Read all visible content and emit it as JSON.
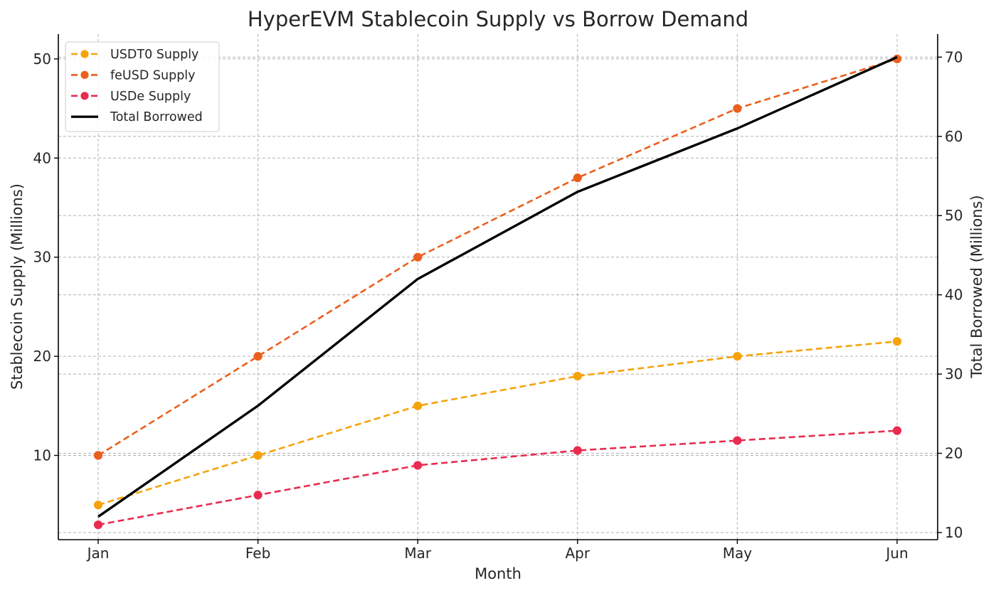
{
  "chart_data": {
    "type": "line",
    "title": "HyperEVM Stablecoin Supply vs Borrow Demand",
    "xlabel": "Month",
    "ylabel": "Stablecoin Supply (Millions)",
    "y2label": "Total Borrowed (Millions)",
    "categories": [
      "Jan",
      "Feb",
      "Mar",
      "Apr",
      "May",
      "Jun"
    ],
    "ylim": [
      1.5,
      52.5
    ],
    "y_ticks": [
      10,
      20,
      30,
      40,
      50
    ],
    "y2lim": [
      9.1,
      72.9
    ],
    "y2_ticks": [
      10,
      20,
      30,
      40,
      50,
      60,
      70
    ],
    "grid": true,
    "legend_position": "upper-left",
    "series": [
      {
        "name": "USDT0 Supply",
        "axis": "left",
        "color": "#f5a30a",
        "style": "dashed",
        "marker": true,
        "values": [
          5,
          10,
          15,
          18,
          20,
          21.5
        ]
      },
      {
        "name": "feUSD Supply",
        "axis": "left",
        "color": "#ea5f1c",
        "style": "dashed",
        "marker": true,
        "values": [
          10,
          20,
          30,
          38,
          45,
          50
        ]
      },
      {
        "name": "USDe Supply",
        "axis": "left",
        "color": "#e82c4f",
        "style": "dashed",
        "marker": true,
        "values": [
          3,
          6,
          9,
          10.5,
          11.5,
          12.5
        ]
      },
      {
        "name": "Total Borrowed",
        "axis": "right",
        "color": "#000000",
        "style": "solid",
        "marker": false,
        "values": [
          12,
          26,
          42,
          53,
          61,
          70
        ]
      }
    ]
  }
}
